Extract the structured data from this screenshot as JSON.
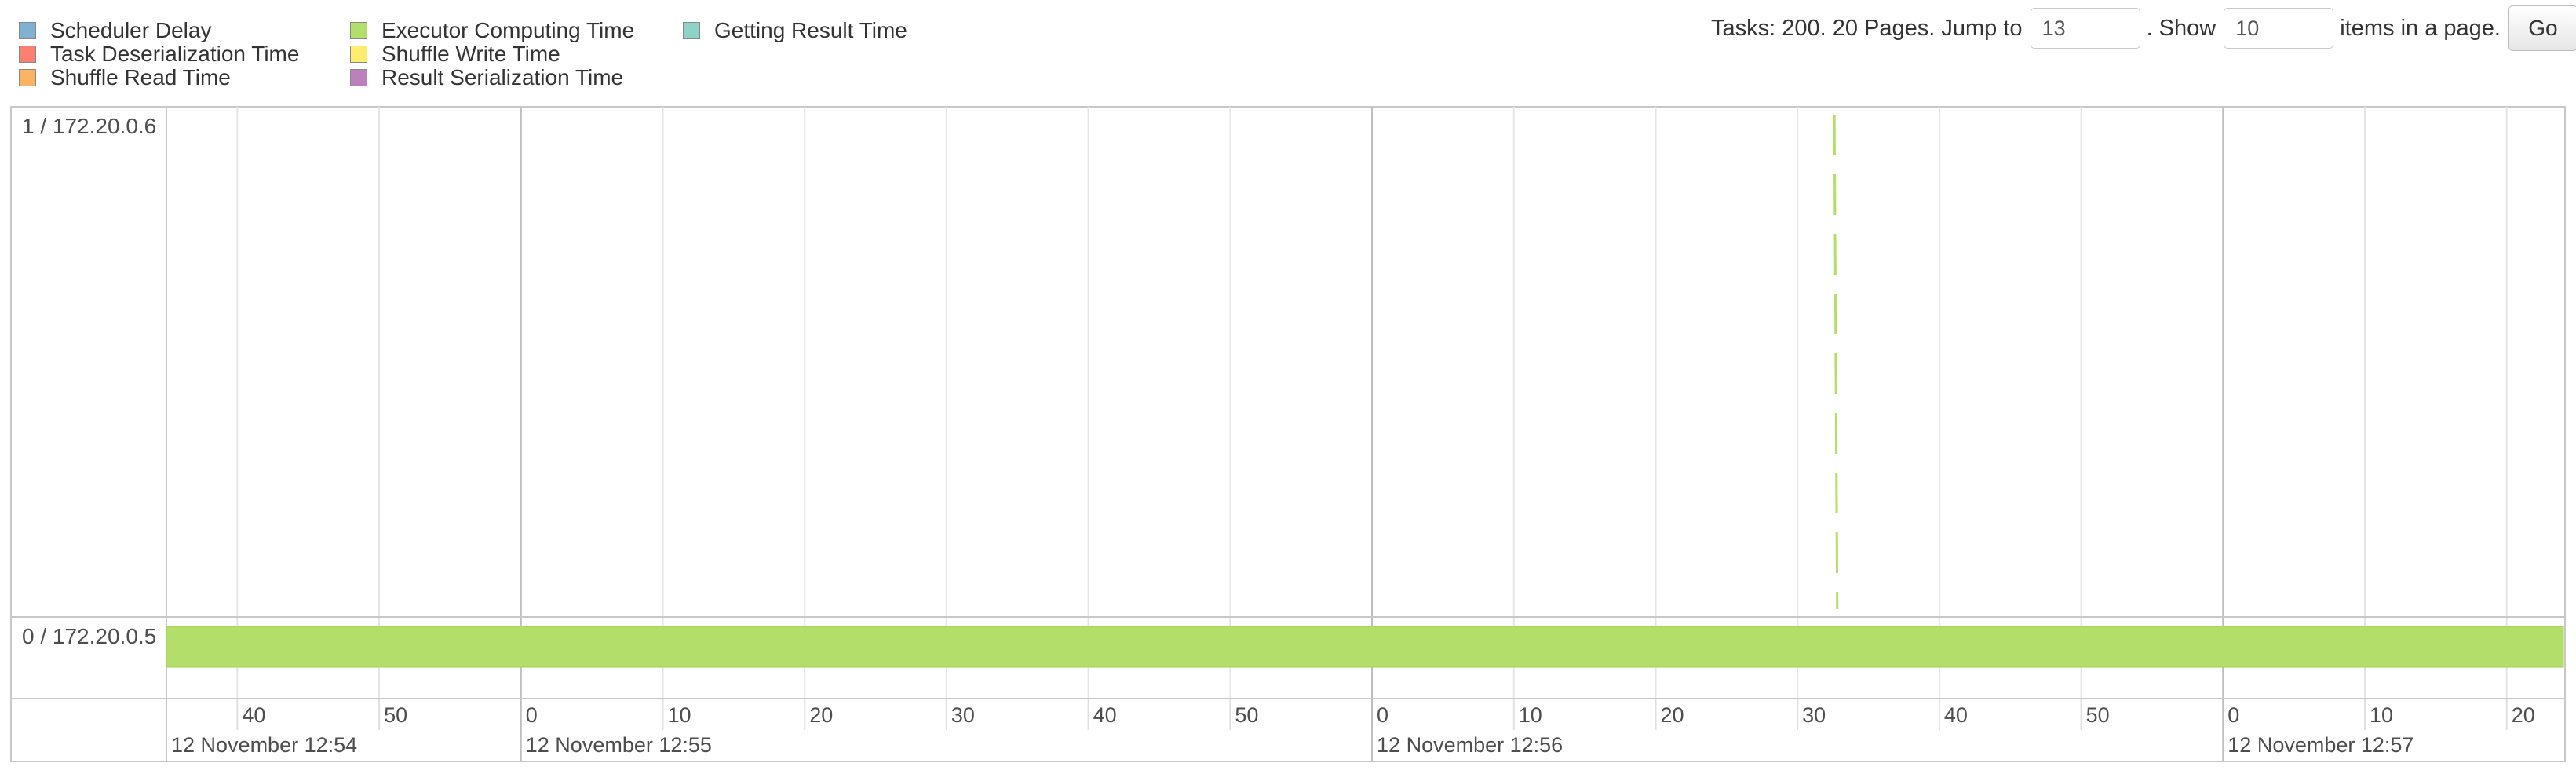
{
  "legend": {
    "items": [
      {
        "label": "Scheduler Delay",
        "color": "#80b1d3"
      },
      {
        "label": "Task Deserialization Time",
        "color": "#fb8072"
      },
      {
        "label": "Shuffle Read Time",
        "color": "#fdb462"
      },
      {
        "label": "Executor Computing Time",
        "color": "#b3de69"
      },
      {
        "label": "Shuffle Write Time",
        "color": "#ffed6f"
      },
      {
        "label": "Result Serialization Time",
        "color": "#bc80bd"
      },
      {
        "label": "Getting Result Time",
        "color": "#8dd3c7"
      }
    ]
  },
  "pager": {
    "tasks_text": "Tasks: 200. 20 Pages. Jump to",
    "jump_value": "13",
    "show_text": ". Show",
    "show_value": "10",
    "items_text": "items in a page.",
    "go_label": "Go"
  },
  "timeline": {
    "executors": [
      {
        "label": "1 / 172.20.0.6"
      },
      {
        "label": "0 / 172.20.0.5"
      }
    ],
    "x_range_seconds": [
      35,
      204
    ],
    "major_ticks": [
      {
        "t": 60,
        "label": "12 November 12:55"
      },
      {
        "t": 120,
        "label": "12 November 12:56"
      },
      {
        "t": 180,
        "label": "12 November 12:57"
      }
    ],
    "start_major_label": "12 November 12:54",
    "minor_ticks": [
      {
        "t": 40,
        "label": "40"
      },
      {
        "t": 50,
        "label": "50"
      },
      {
        "t": 60,
        "label": "0"
      },
      {
        "t": 70,
        "label": "10"
      },
      {
        "t": 80,
        "label": "20"
      },
      {
        "t": 90,
        "label": "30"
      },
      {
        "t": 100,
        "label": "40"
      },
      {
        "t": 110,
        "label": "50"
      },
      {
        "t": 120,
        "label": "0"
      },
      {
        "t": 130,
        "label": "10"
      },
      {
        "t": 140,
        "label": "20"
      },
      {
        "t": 150,
        "label": "30"
      },
      {
        "t": 160,
        "label": "40"
      },
      {
        "t": 170,
        "label": "50"
      },
      {
        "t": 180,
        "label": "0"
      },
      {
        "t": 190,
        "label": "10"
      },
      {
        "t": 200,
        "label": "20"
      }
    ],
    "tasks": [
      {
        "executor": 0,
        "start": 152.6,
        "end": 152.8,
        "color": "#b3de69",
        "dashed": true
      },
      {
        "executor": 1,
        "start": 35,
        "end": 204,
        "color": "#b3de69",
        "dashed": false
      }
    ]
  }
}
